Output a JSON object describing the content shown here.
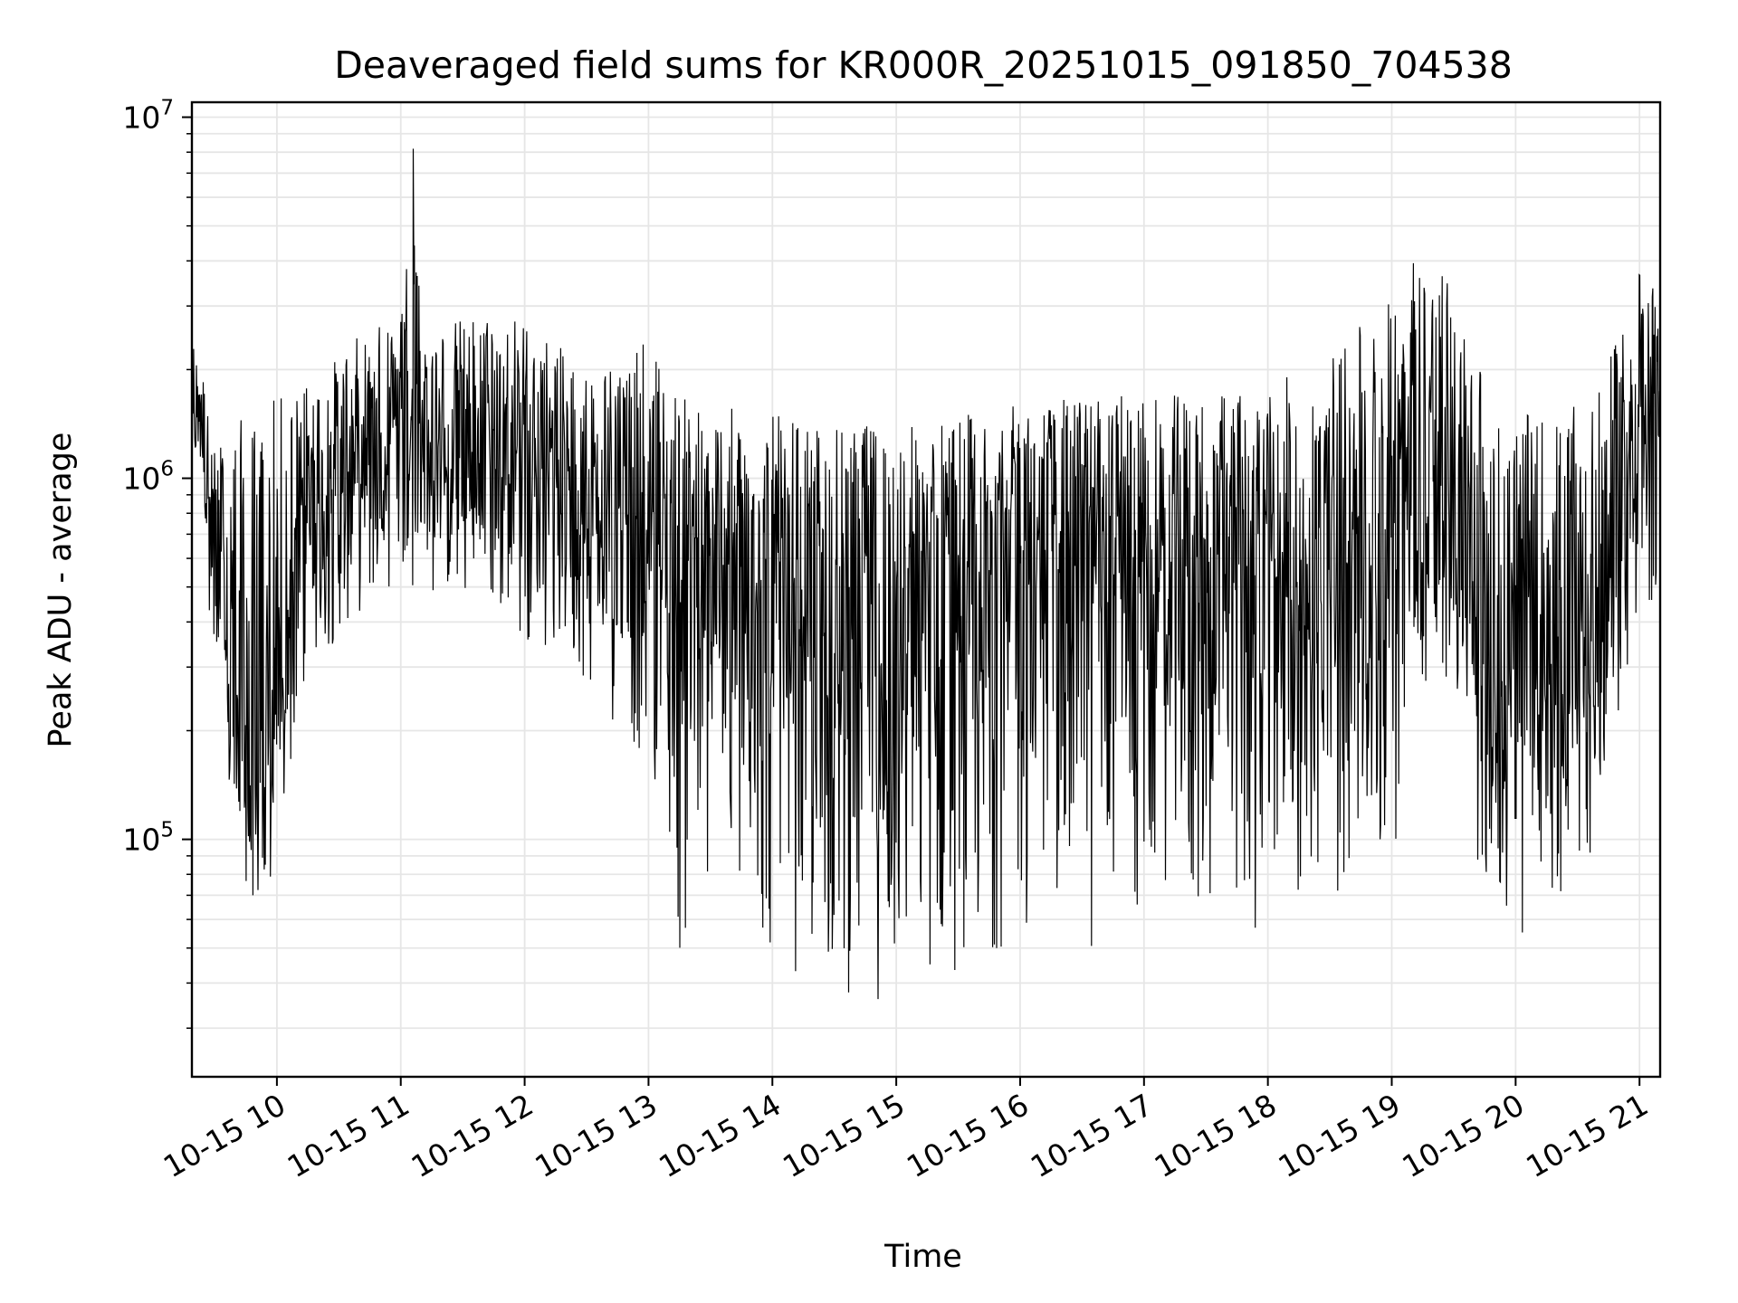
{
  "chart_data": {
    "type": "line",
    "title": "Deaveraged field sums for KR000R_20251015_091850_704538",
    "xlabel": "Time",
    "ylabel": "Peak ADU - average",
    "yscale": "log",
    "ylim": [
      22000,
      11000000
    ],
    "xlim": [
      "2025-10-15 09:18:50",
      "2025-10-15 21:10:00"
    ],
    "x_ticks": [
      "10-15 10",
      "10-15 11",
      "10-15 12",
      "10-15 13",
      "10-15 14",
      "10-15 15",
      "10-15 16",
      "10-15 17",
      "10-15 18",
      "10-15 19",
      "10-15 20",
      "10-15 21"
    ],
    "x_tick_times": [
      "2025-10-15 10:00",
      "2025-10-15 11:00",
      "2025-10-15 12:00",
      "2025-10-15 13:00",
      "2025-10-15 14:00",
      "2025-10-15 15:00",
      "2025-10-15 16:00",
      "2025-10-15 17:00",
      "2025-10-15 18:00",
      "2025-10-15 19:00",
      "2025-10-15 20:00",
      "2025-10-15 21:00"
    ],
    "y_ticks": [
      {
        "value": 100000,
        "base": "10",
        "exp": "5"
      },
      {
        "value": 1000000,
        "base": "10",
        "exp": "6"
      },
      {
        "value": 10000000,
        "base": "10",
        "exp": "7"
      }
    ],
    "grid": true,
    "line_color": "#000000",
    "grid_color": "#e6e6e6",
    "series": [
      {
        "x": [
          "2025-10-15 09:18:50",
          "2025-10-15 09:20",
          "2025-10-15 09:24",
          "2025-10-15 09:28",
          "2025-10-15 09:30",
          "2025-10-15 09:33",
          "2025-10-15 09:36",
          "2025-10-15 09:40",
          "2025-10-15 09:45",
          "2025-10-15 09:50",
          "2025-10-15 09:55",
          "2025-10-15 10:00",
          "2025-10-15 10:10",
          "2025-10-15 10:20",
          "2025-10-15 10:30",
          "2025-10-15 10:40",
          "2025-10-15 10:50",
          "2025-10-15 11:00",
          "2025-10-15 11:06",
          "2025-10-15 11:10",
          "2025-10-15 11:20",
          "2025-10-15 11:40",
          "2025-10-15 12:00",
          "2025-10-15 12:30",
          "2025-10-15 13:00",
          "2025-10-15 13:15",
          "2025-10-15 13:30",
          "2025-10-15 14:00",
          "2025-10-15 14:30",
          "2025-10-15 15:00",
          "2025-10-15 15:30",
          "2025-10-15 16:00",
          "2025-10-15 16:30",
          "2025-10-15 17:00",
          "2025-10-15 17:30",
          "2025-10-15 18:00",
          "2025-10-15 18:30",
          "2025-10-15 19:00",
          "2025-10-15 19:10",
          "2025-10-15 19:30",
          "2025-10-15 19:45",
          "2025-10-15 20:00",
          "2025-10-15 20:20",
          "2025-10-15 20:40",
          "2025-10-15 21:00",
          "2025-10-15 21:10"
        ],
        "upper": [
          2600000,
          2300000,
          2000000,
          1300000,
          1200000,
          1300000,
          1400000,
          1500000,
          1500000,
          1500000,
          1600000,
          1700000,
          1800000,
          1900000,
          2200000,
          2500000,
          2700000,
          2900000,
          8300000,
          2800000,
          2700000,
          2900000,
          2800000,
          2000000,
          2400000,
          1700000,
          1600000,
          1500000,
          1400000,
          1400000,
          1500000,
          1600000,
          1700000,
          1700000,
          1700000,
          1800000,
          2200000,
          3200000,
          4400000,
          3500000,
          2000000,
          1500000,
          1500000,
          1700000,
          3800000,
          3400000
        ],
        "mid": [
          1700000,
          1600000,
          1400000,
          700000,
          600000,
          500000,
          300000,
          200000,
          150000,
          140000,
          160000,
          250000,
          600000,
          800000,
          1000000,
          1100000,
          1200000,
          1200000,
          1200000,
          1100000,
          1100000,
          1100000,
          1100000,
          900000,
          600000,
          500000,
          450000,
          350000,
          350000,
          400000,
          450000,
          550000,
          550000,
          500000,
          450000,
          450000,
          500000,
          700000,
          700000,
          600000,
          300000,
          250000,
          250000,
          350000,
          1200000,
          1400000
        ],
        "lower": [
          1100000,
          1050000,
          1000000,
          350000,
          200000,
          150000,
          120000,
          90000,
          70000,
          60000,
          55000,
          60000,
          200000,
          250000,
          350000,
          400000,
          450000,
          500000,
          500000,
          450000,
          450000,
          400000,
          350000,
          250000,
          150000,
          40000,
          60000,
          40000,
          35000,
          33000,
          40000,
          50000,
          45000,
          50000,
          55000,
          55000,
          60000,
          70000,
          250000,
          250000,
          60000,
          45000,
          50000,
          100000,
          300000,
          500000
        ]
      }
    ]
  }
}
